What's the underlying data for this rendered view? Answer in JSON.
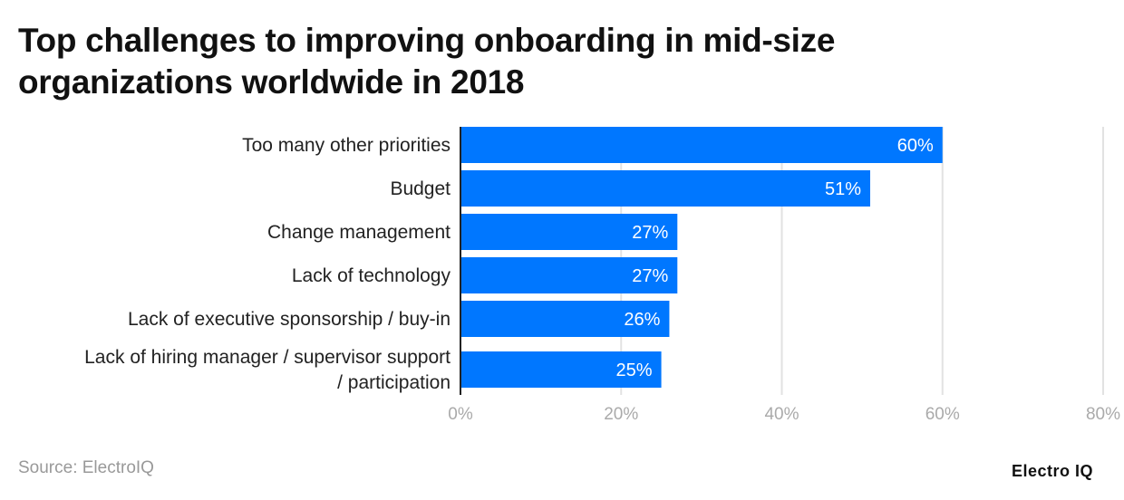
{
  "chart_data": {
    "type": "bar",
    "orientation": "horizontal",
    "title": "Top challenges to improving onboarding in mid-size organizations worldwide in 2018",
    "categories": [
      [
        "Too many other priorities"
      ],
      [
        "Budget"
      ],
      [
        "Change management"
      ],
      [
        "Lack of technology"
      ],
      [
        "Lack of executive sponsorship / buy-in"
      ],
      [
        "Lack of hiring manager / supervisor support",
        "/ participation"
      ]
    ],
    "values": [
      60,
      51,
      27,
      27,
      26,
      25
    ],
    "data_labels": [
      "60%",
      "51%",
      "27%",
      "27%",
      "26%",
      "25%"
    ],
    "xlim": [
      0,
      80
    ],
    "x_ticks": [
      0,
      20,
      40,
      60,
      80
    ],
    "x_tick_labels": [
      "0%",
      "20%",
      "40%",
      "60%",
      "80%"
    ],
    "grid": true,
    "bar_color": "#0077FF"
  },
  "footer": {
    "source": "Source: ElectroIQ",
    "logo": "Electro IQ"
  }
}
